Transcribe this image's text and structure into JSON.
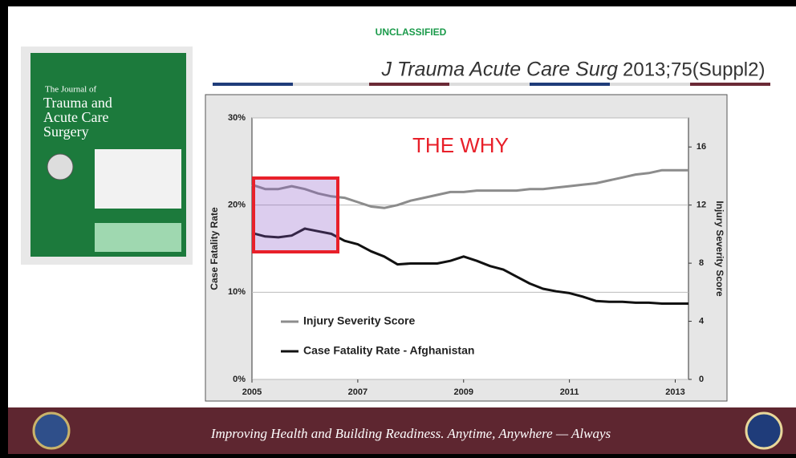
{
  "header": {
    "classification": "UNCLASSIFIED",
    "citation_journal": "J Trauma Acute Care Surg",
    "citation_issue": "2013;75(Suppl2)"
  },
  "cover": {
    "lines": [
      "The Journal of",
      "Trauma and",
      "Acute Care",
      "Surgery"
    ]
  },
  "footer": {
    "motto": "Improving Health and Building Readiness. Anytime, Anywhere — Always"
  },
  "chart_data": {
    "type": "line",
    "annotation": "THE WHY",
    "ylabel": "Case Fatality Rate",
    "y2label": "Injury Severity Score",
    "x": [
      2005,
      2005.25,
      2005.5,
      2005.75,
      2006,
      2006.25,
      2006.5,
      2006.75,
      2007,
      2007.25,
      2007.5,
      2007.75,
      2008,
      2008.25,
      2008.5,
      2008.75,
      2009,
      2009.25,
      2009.5,
      2009.75,
      2010,
      2010.25,
      2010.5,
      2010.75,
      2011,
      2011.25,
      2011.5,
      2011.75,
      2012,
      2012.25,
      2012.5,
      2012.75,
      2013,
      2013.25
    ],
    "xlim": [
      2005,
      2013.25
    ],
    "xticks": [
      2005,
      2007,
      2009,
      2011,
      2013
    ],
    "ylim": [
      0,
      30
    ],
    "yticks": [
      {
        "value": 0,
        "label": "0%"
      },
      {
        "value": 10,
        "label": "10%"
      },
      {
        "value": 20,
        "label": "20%"
      },
      {
        "value": 30,
        "label": "30%"
      }
    ],
    "y2lim": [
      0,
      18
    ],
    "y2ticks": [
      0,
      4,
      8,
      12,
      16
    ],
    "grid": true,
    "series": [
      {
        "name": "Injury Severity Score",
        "color": "#8c8c8c",
        "axis": "y2",
        "values": [
          13.4,
          13.1,
          13.1,
          13.3,
          13.1,
          12.8,
          12.6,
          12.5,
          12.2,
          11.9,
          11.8,
          12.0,
          12.3,
          12.5,
          12.7,
          12.9,
          12.9,
          13.0,
          13.0,
          13.0,
          13.0,
          13.1,
          13.1,
          13.2,
          13.3,
          13.4,
          13.5,
          13.7,
          13.9,
          14.1,
          14.2,
          14.4,
          14.4,
          14.4
        ]
      },
      {
        "name": "Case Fatality Rate - Afghanistan",
        "color": "#111111",
        "values": [
          16.8,
          16.4,
          16.3,
          16.5,
          17.3,
          17.0,
          16.7,
          15.9,
          15.5,
          14.7,
          14.1,
          13.2,
          13.3,
          13.3,
          13.3,
          13.6,
          14.1,
          13.6,
          13.0,
          12.6,
          11.8,
          11.0,
          10.4,
          10.1,
          9.9,
          9.5,
          9.0,
          8.9,
          8.9,
          8.8,
          8.8,
          8.7,
          8.7,
          8.7
        ]
      }
    ]
  }
}
